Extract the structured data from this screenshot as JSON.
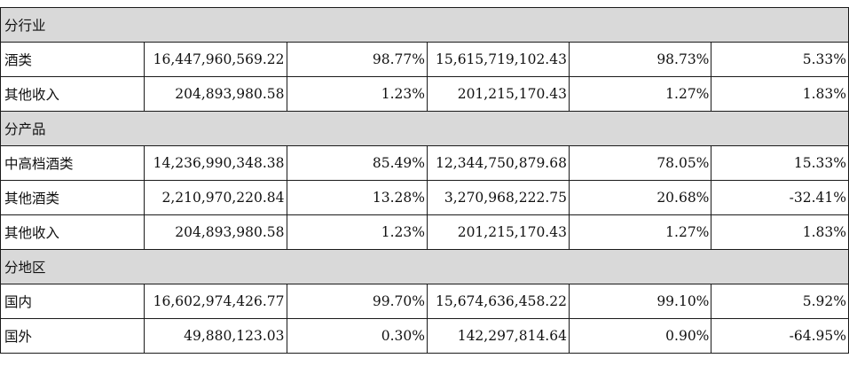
{
  "sections": [
    {
      "title": "分行业",
      "rows": [
        {
          "label": "酒类",
          "c1": "16,447,960,569.22",
          "c2": "98.77%",
          "c3": "15,615,719,102.43",
          "c4": "98.73%",
          "c5": "5.33%"
        },
        {
          "label": "其他收入",
          "c1": "204,893,980.58",
          "c2": "1.23%",
          "c3": "201,215,170.43",
          "c4": "1.27%",
          "c5": "1.83%"
        }
      ]
    },
    {
      "title": "分产品",
      "rows": [
        {
          "label": "中高档酒类",
          "c1": "14,236,990,348.38",
          "c2": "85.49%",
          "c3": "12,344,750,879.68",
          "c4": "78.05%",
          "c5": "15.33%"
        },
        {
          "label": "其他酒类",
          "c1": "2,210,970,220.84",
          "c2": "13.28%",
          "c3": "3,270,968,222.75",
          "c4": "20.68%",
          "c5": "-32.41%"
        },
        {
          "label": "其他收入",
          "c1": "204,893,980.58",
          "c2": "1.23%",
          "c3": "201,215,170.43",
          "c4": "1.27%",
          "c5": "1.83%"
        }
      ]
    },
    {
      "title": "分地区",
      "rows": [
        {
          "label": "国内",
          "c1": "16,602,974,426.77",
          "c2": "99.70%",
          "c3": "15,674,636,458.22",
          "c4": "99.10%",
          "c5": "5.92%"
        },
        {
          "label": "国外",
          "c1": "49,880,123.03",
          "c2": "0.30%",
          "c3": "142,297,814.64",
          "c4": "0.90%",
          "c5": "-64.95%"
        }
      ]
    }
  ]
}
